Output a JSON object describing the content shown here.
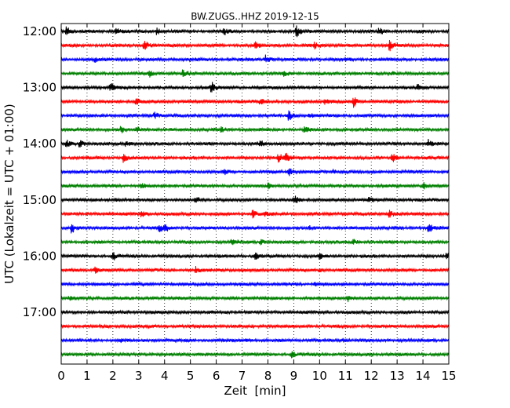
{
  "chart_data": {
    "type": "line",
    "title": "BW.ZUGS..HHZ 2019-12-15",
    "xlabel": "Zeit  [min]",
    "ylabel": "UTC (Lokalzeit = UTC + 01:00)",
    "xlim": [
      0,
      15
    ],
    "xticks": [
      "0",
      "1",
      "2",
      "3",
      "4",
      "5",
      "6",
      "7",
      "8",
      "9",
      "10",
      "11",
      "12",
      "13",
      "14",
      "15"
    ],
    "yticks": [
      {
        "label": "12:00",
        "row": 0
      },
      {
        "label": "13:00",
        "row": 4
      },
      {
        "label": "14:00",
        "row": 8
      },
      {
        "label": "15:00",
        "row": 12
      },
      {
        "label": "16:00",
        "row": 16
      },
      {
        "label": "17:00",
        "row": 20
      }
    ],
    "grid": "vertical dotted",
    "row_colors": [
      "#000000",
      "#ff0000",
      "#0000ff",
      "#008000"
    ],
    "series": [
      {
        "start": "12:00",
        "events": [
          [
            0.2,
            0.7
          ],
          [
            2.1,
            0.5
          ],
          [
            3.7,
            0.5
          ],
          [
            6.3,
            0.4
          ],
          [
            9.1,
            1.0
          ],
          [
            12.3,
            0.6
          ]
        ]
      },
      {
        "start": "12:15",
        "events": [
          [
            3.2,
            0.9
          ],
          [
            7.5,
            0.4
          ],
          [
            9.8,
            0.5
          ],
          [
            12.7,
            0.8
          ]
        ]
      },
      {
        "start": "12:30",
        "events": [
          [
            1.3,
            0.4
          ],
          [
            7.9,
            0.7
          ],
          [
            11.0,
            0.3
          ]
        ]
      },
      {
        "start": "12:45",
        "events": [
          [
            3.4,
            0.5
          ],
          [
            4.7,
            0.6
          ],
          [
            8.6,
            0.4
          ],
          [
            12.8,
            0.3
          ]
        ]
      },
      {
        "start": "13:00",
        "events": [
          [
            1.9,
            0.7
          ],
          [
            5.8,
            0.8
          ],
          [
            13.8,
            0.6
          ]
        ]
      },
      {
        "start": "13:15",
        "events": [
          [
            2.9,
            0.6
          ],
          [
            7.7,
            0.5
          ],
          [
            10.2,
            0.4
          ],
          [
            11.3,
            0.8
          ]
        ]
      },
      {
        "start": "13:30",
        "events": [
          [
            3.6,
            0.5
          ],
          [
            8.8,
            0.7
          ],
          [
            9.6,
            0.3
          ]
        ]
      },
      {
        "start": "13:45",
        "events": [
          [
            2.3,
            0.5
          ],
          [
            2.9,
            0.5
          ],
          [
            6.2,
            0.4
          ],
          [
            9.4,
            0.4
          ]
        ]
      },
      {
        "start": "14:00",
        "events": [
          [
            0.2,
            0.5
          ],
          [
            0.7,
            0.6
          ],
          [
            2.5,
            0.5
          ],
          [
            7.7,
            0.6
          ],
          [
            14.2,
            0.5
          ]
        ]
      },
      {
        "start": "14:15",
        "events": [
          [
            2.4,
            0.7
          ],
          [
            8.4,
            0.6
          ],
          [
            8.7,
            0.7
          ],
          [
            12.8,
            0.7
          ]
        ]
      },
      {
        "start": "14:30",
        "events": [
          [
            6.3,
            0.4
          ],
          [
            8.8,
            0.7
          ],
          [
            10.5,
            0.3
          ]
        ]
      },
      {
        "start": "14:45",
        "events": [
          [
            3.1,
            0.4
          ],
          [
            8.0,
            0.4
          ],
          [
            14.0,
            0.6
          ]
        ]
      },
      {
        "start": "15:00",
        "events": [
          [
            2.1,
            0.4
          ],
          [
            5.2,
            0.4
          ],
          [
            9.0,
            0.7
          ],
          [
            11.9,
            0.4
          ]
        ]
      },
      {
        "start": "15:15",
        "events": [
          [
            3.1,
            0.4
          ],
          [
            7.4,
            0.6
          ],
          [
            7.9,
            0.4
          ],
          [
            12.7,
            0.6
          ]
        ]
      },
      {
        "start": "15:30",
        "events": [
          [
            0.4,
            0.8
          ],
          [
            3.8,
            0.7
          ],
          [
            4.0,
            0.5
          ],
          [
            9.6,
            0.3
          ],
          [
            14.2,
            0.8
          ]
        ]
      },
      {
        "start": "15:45",
        "events": [
          [
            6.6,
            0.5
          ],
          [
            7.7,
            0.4
          ],
          [
            11.3,
            0.4
          ]
        ]
      },
      {
        "start": "16:00",
        "events": [
          [
            2.0,
            0.6
          ],
          [
            7.5,
            0.6
          ],
          [
            10.0,
            0.4
          ],
          [
            14.9,
            0.5
          ]
        ]
      },
      {
        "start": "16:15",
        "events": [
          [
            1.3,
            0.4
          ],
          [
            5.2,
            0.4
          ],
          [
            10.0,
            0.2
          ]
        ]
      },
      {
        "start": "16:30",
        "events": [
          [
            9.8,
            0.3
          ]
        ]
      },
      {
        "start": "16:45",
        "events": [
          [
            0.3,
            0.3
          ],
          [
            3.5,
            0.2
          ],
          [
            11.1,
            0.5
          ]
        ]
      },
      {
        "start": "17:00",
        "events": []
      },
      {
        "start": "17:15",
        "events": []
      },
      {
        "start": "17:30",
        "events": [
          [
            2.3,
            0.2
          ],
          [
            7.1,
            0.2
          ],
          [
            10.9,
            0.2
          ]
        ]
      },
      {
        "start": "17:45",
        "events": [
          [
            8.9,
            0.5
          ]
        ]
      }
    ]
  }
}
